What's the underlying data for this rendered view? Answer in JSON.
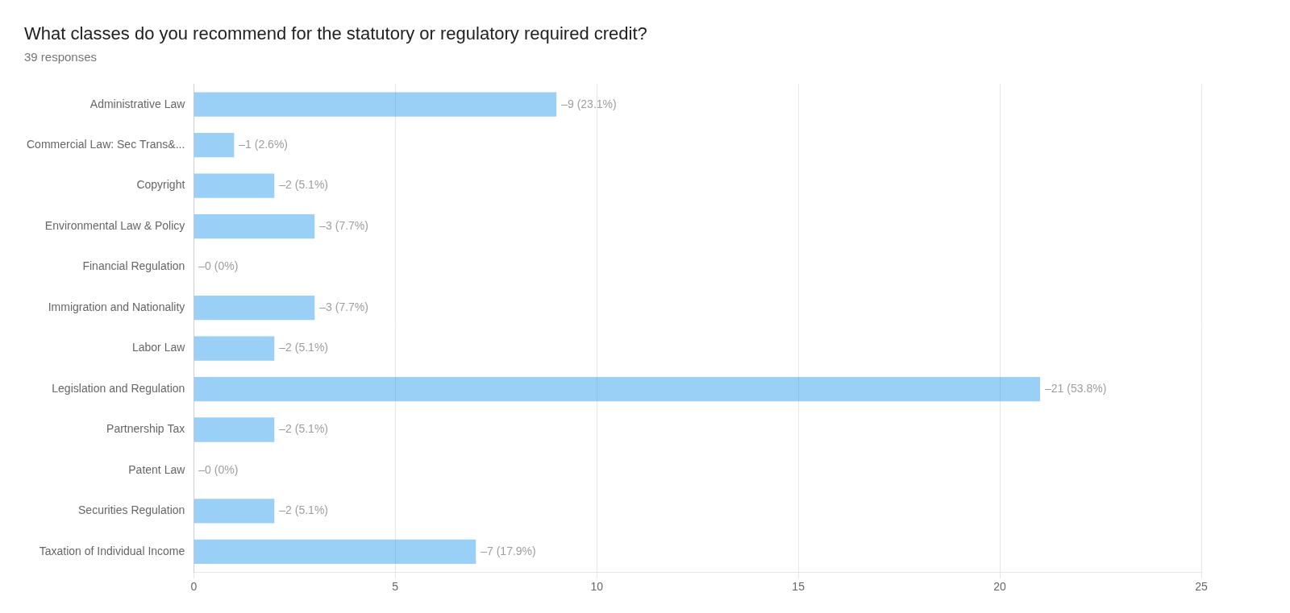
{
  "chart_data": {
    "type": "bar",
    "orientation": "horizontal",
    "title": "What classes do you recommend for the statutory or regulatory required credit?",
    "subtitle": "39 responses",
    "categories": [
      "Administrative Law",
      "Commercial Law: Sec Trans&...",
      "Copyright",
      "Environmental Law & Policy",
      "Financial Regulation",
      "Immigration and Nationality",
      "Labor Law",
      "Legislation and Regulation",
      "Partnership Tax",
      "Patent Law",
      "Securities Regulation",
      "Taxation of Individual Income"
    ],
    "values": [
      9,
      1,
      2,
      3,
      0,
      3,
      2,
      21,
      2,
      0,
      2,
      7
    ],
    "value_labels": [
      "–9 (23.1%)",
      "–1 (2.6%)",
      "–2 (5.1%)",
      "–3 (7.7%)",
      "–0 (0%)",
      "–3 (7.7%)",
      "–2 (5.1%)",
      "–21 (53.8%)",
      "–2 (5.1%)",
      "–0 (0%)",
      "–2 (5.1%)",
      "–7 (17.9%)"
    ],
    "data_labels": true,
    "xlim": [
      0,
      25
    ],
    "xticks": [
      0,
      5,
      10,
      15,
      20,
      25
    ],
    "grid": true
  }
}
